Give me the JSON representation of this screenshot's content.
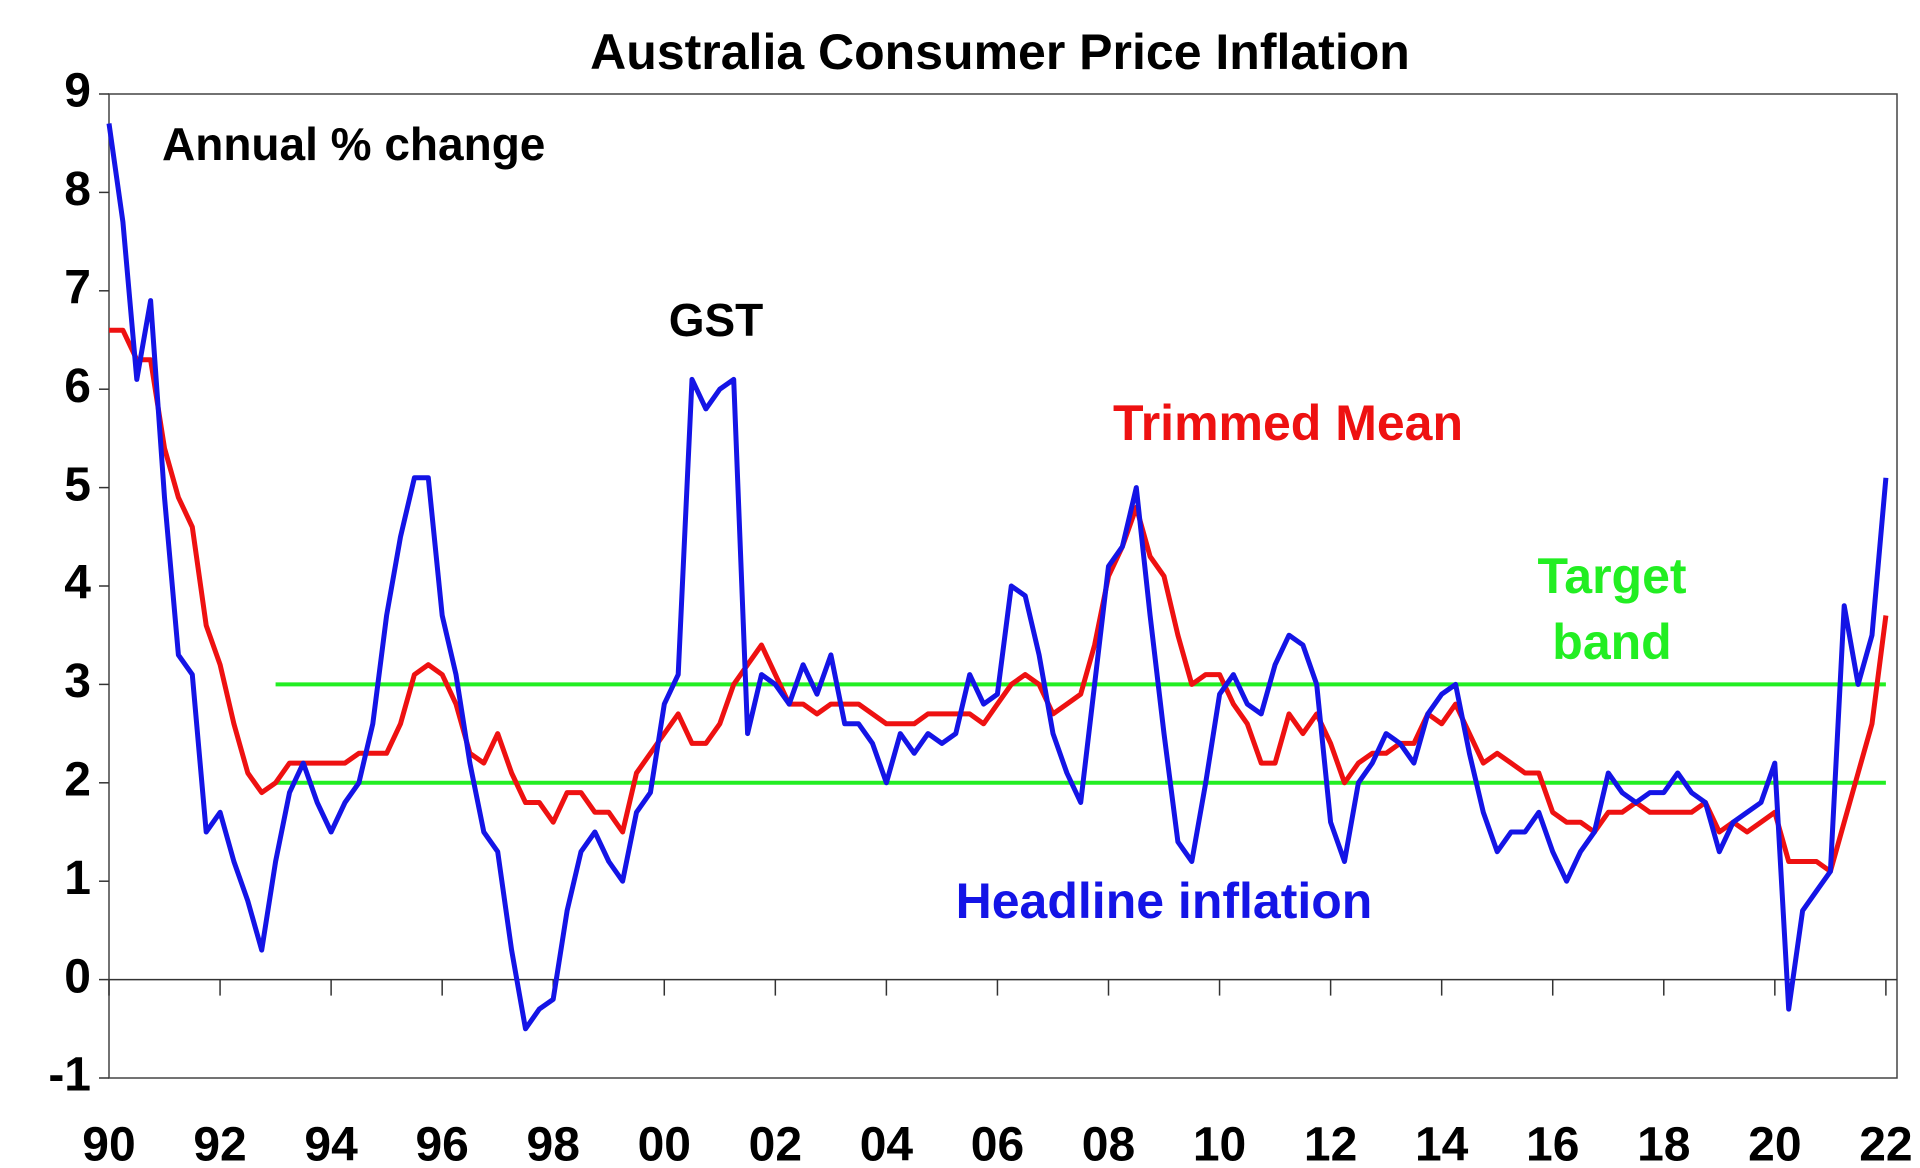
{
  "chart_data": {
    "type": "line",
    "title": "Australia Consumer Price Inflation",
    "ylabel": "Annual % change",
    "annotations": {
      "gst": "GST",
      "target_band": [
        "Target",
        "band"
      ]
    },
    "x": [
      1990,
      1990.25,
      1990.5,
      1990.75,
      1991,
      1991.25,
      1991.5,
      1991.75,
      1992,
      1992.25,
      1992.5,
      1992.75,
      1993,
      1993.25,
      1993.5,
      1993.75,
      1994,
      1994.25,
      1994.5,
      1994.75,
      1995,
      1995.25,
      1995.5,
      1995.75,
      1996,
      1996.25,
      1996.5,
      1996.75,
      1997,
      1997.25,
      1997.5,
      1997.75,
      1998,
      1998.25,
      1998.5,
      1998.75,
      1999,
      1999.25,
      1999.5,
      1999.75,
      2000,
      2000.25,
      2000.5,
      2000.75,
      2001,
      2001.25,
      2001.5,
      2001.75,
      2002,
      2002.25,
      2002.5,
      2002.75,
      2003,
      2003.25,
      2003.5,
      2003.75,
      2004,
      2004.25,
      2004.5,
      2004.75,
      2005,
      2005.25,
      2005.5,
      2005.75,
      2006,
      2006.25,
      2006.5,
      2006.75,
      2007,
      2007.25,
      2007.5,
      2007.75,
      2008,
      2008.25,
      2008.5,
      2008.75,
      2009,
      2009.25,
      2009.5,
      2009.75,
      2010,
      2010.25,
      2010.5,
      2010.75,
      2011,
      2011.25,
      2011.5,
      2011.75,
      2012,
      2012.25,
      2012.5,
      2012.75,
      2013,
      2013.25,
      2013.5,
      2013.75,
      2014,
      2014.25,
      2014.5,
      2014.75,
      2015,
      2015.25,
      2015.5,
      2015.75,
      2016,
      2016.25,
      2016.5,
      2016.75,
      2017,
      2017.25,
      2017.5,
      2017.75,
      2018,
      2018.25,
      2018.5,
      2018.75,
      2019,
      2019.25,
      2019.5,
      2019.75,
      2020,
      2020.25,
      2020.5,
      2020.75,
      2021,
      2021.25,
      2021.5,
      2021.75,
      2022
    ],
    "series": [
      {
        "name": "Headline inflation",
        "color": "#1414e6",
        "values": [
          8.7,
          7.7,
          6.1,
          6.9,
          4.9,
          3.3,
          3.1,
          1.5,
          1.7,
          1.2,
          0.8,
          0.3,
          1.2,
          1.9,
          2.2,
          1.8,
          1.5,
          1.8,
          2.0,
          2.6,
          3.7,
          4.5,
          5.1,
          5.1,
          3.7,
          3.1,
          2.2,
          1.5,
          1.3,
          0.3,
          -0.5,
          -0.3,
          -0.2,
          0.7,
          1.3,
          1.5,
          1.2,
          1.0,
          1.7,
          1.9,
          2.8,
          3.1,
          6.1,
          5.8,
          6.0,
          6.1,
          2.5,
          3.1,
          3.0,
          2.8,
          3.2,
          2.9,
          3.3,
          2.6,
          2.6,
          2.4,
          2.0,
          2.5,
          2.3,
          2.5,
          2.4,
          2.5,
          3.1,
          2.8,
          2.9,
          4.0,
          3.9,
          3.3,
          2.5,
          2.1,
          1.8,
          3.0,
          4.2,
          4.4,
          5.0,
          3.7,
          2.5,
          1.4,
          1.2,
          2.0,
          2.9,
          3.1,
          2.8,
          2.7,
          3.2,
          3.5,
          3.4,
          3.0,
          1.6,
          1.2,
          2.0,
          2.2,
          2.5,
          2.4,
          2.2,
          2.7,
          2.9,
          3.0,
          2.3,
          1.7,
          1.3,
          1.5,
          1.5,
          1.7,
          1.3,
          1.0,
          1.3,
          1.5,
          2.1,
          1.9,
          1.8,
          1.9,
          1.9,
          2.1,
          1.9,
          1.8,
          1.3,
          1.6,
          1.7,
          1.8,
          2.2,
          -0.3,
          0.7,
          0.9,
          1.1,
          3.8,
          3.0,
          3.5,
          5.1
        ]
      },
      {
        "name": "Trimmed Mean",
        "color": "#ee1111",
        "values": [
          6.6,
          6.6,
          6.3,
          6.3,
          5.4,
          4.9,
          4.6,
          3.6,
          3.2,
          2.6,
          2.1,
          1.9,
          2.0,
          2.2,
          2.2,
          2.2,
          2.2,
          2.2,
          2.3,
          2.3,
          2.3,
          2.6,
          3.1,
          3.2,
          3.1,
          2.8,
          2.3,
          2.2,
          2.5,
          2.1,
          1.8,
          1.8,
          1.6,
          1.9,
          1.9,
          1.7,
          1.7,
          1.5,
          2.1,
          2.3,
          2.5,
          2.7,
          2.4,
          2.4,
          2.6,
          3.0,
          3.2,
          3.4,
          3.1,
          2.8,
          2.8,
          2.7,
          2.8,
          2.8,
          2.8,
          2.7,
          2.6,
          2.6,
          2.6,
          2.7,
          2.7,
          2.7,
          2.7,
          2.6,
          2.8,
          3.0,
          3.1,
          3.0,
          2.7,
          2.8,
          2.9,
          3.4,
          4.1,
          4.4,
          4.8,
          4.3,
          4.1,
          3.5,
          3.0,
          3.1,
          3.1,
          2.8,
          2.6,
          2.2,
          2.2,
          2.7,
          2.5,
          2.7,
          2.4,
          2.0,
          2.2,
          2.3,
          2.3,
          2.4,
          2.4,
          2.7,
          2.6,
          2.8,
          2.5,
          2.2,
          2.3,
          2.2,
          2.1,
          2.1,
          1.7,
          1.6,
          1.6,
          1.5,
          1.7,
          1.7,
          1.8,
          1.7,
          1.7,
          1.7,
          1.7,
          1.8,
          1.5,
          1.6,
          1.5,
          1.6,
          1.7,
          1.2,
          1.2,
          1.2,
          1.1,
          1.6,
          2.1,
          2.6,
          3.7
        ]
      }
    ],
    "target_band": {
      "x": [
        1993,
        2022
      ],
      "values": [
        2,
        3
      ],
      "color": "#22ee22"
    },
    "xlim": [
      1990,
      2022.2
    ],
    "xticks": [
      {
        "value": 1990,
        "label": "90"
      },
      {
        "value": 1992,
        "label": "92"
      },
      {
        "value": 1994,
        "label": "94"
      },
      {
        "value": 1996,
        "label": "96"
      },
      {
        "value": 1998,
        "label": "98"
      },
      {
        "value": 2000,
        "label": "00"
      },
      {
        "value": 2002,
        "label": "02"
      },
      {
        "value": 2004,
        "label": "04"
      },
      {
        "value": 2006,
        "label": "06"
      },
      {
        "value": 2008,
        "label": "08"
      },
      {
        "value": 2010,
        "label": "10"
      },
      {
        "value": 2012,
        "label": "12"
      },
      {
        "value": 2014,
        "label": "14"
      },
      {
        "value": 2016,
        "label": "16"
      },
      {
        "value": 2018,
        "label": "18"
      },
      {
        "value": 2020,
        "label": "20"
      },
      {
        "value": 2022,
        "label": "22"
      }
    ],
    "ylim": [
      -1,
      9
    ],
    "yticks": [
      -1,
      0,
      1,
      2,
      3,
      4,
      5,
      6,
      7,
      8,
      9
    ],
    "grid": false
  }
}
